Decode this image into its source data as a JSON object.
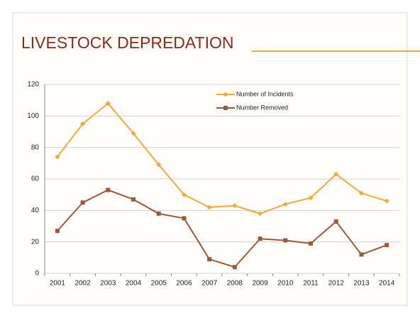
{
  "chart_data": {
    "type": "line",
    "title": "LIVESTOCK DEPREDATION",
    "categories": [
      "2001",
      "2002",
      "2003",
      "2004",
      "2005",
      "2006",
      "2007",
      "2008",
      "2009",
      "2010",
      "2011",
      "2012",
      "2013",
      "2014"
    ],
    "series": [
      {
        "name": "Number of Incidents",
        "color": "#f2a93b",
        "marker": "diamond",
        "values": [
          74,
          95,
          108,
          89,
          69,
          50,
          42,
          43,
          38,
          44,
          48,
          63,
          51,
          46
        ]
      },
      {
        "name": "Number Removed",
        "color": "#9a5a3c",
        "marker": "square",
        "values": [
          27,
          45,
          53,
          47,
          38,
          35,
          9,
          4,
          22,
          21,
          19,
          33,
          12,
          18
        ]
      }
    ],
    "ylim": [
      0,
      120
    ],
    "yticks": [
      0,
      20,
      40,
      60,
      80,
      100,
      120
    ],
    "grid": true,
    "legend": "top"
  }
}
